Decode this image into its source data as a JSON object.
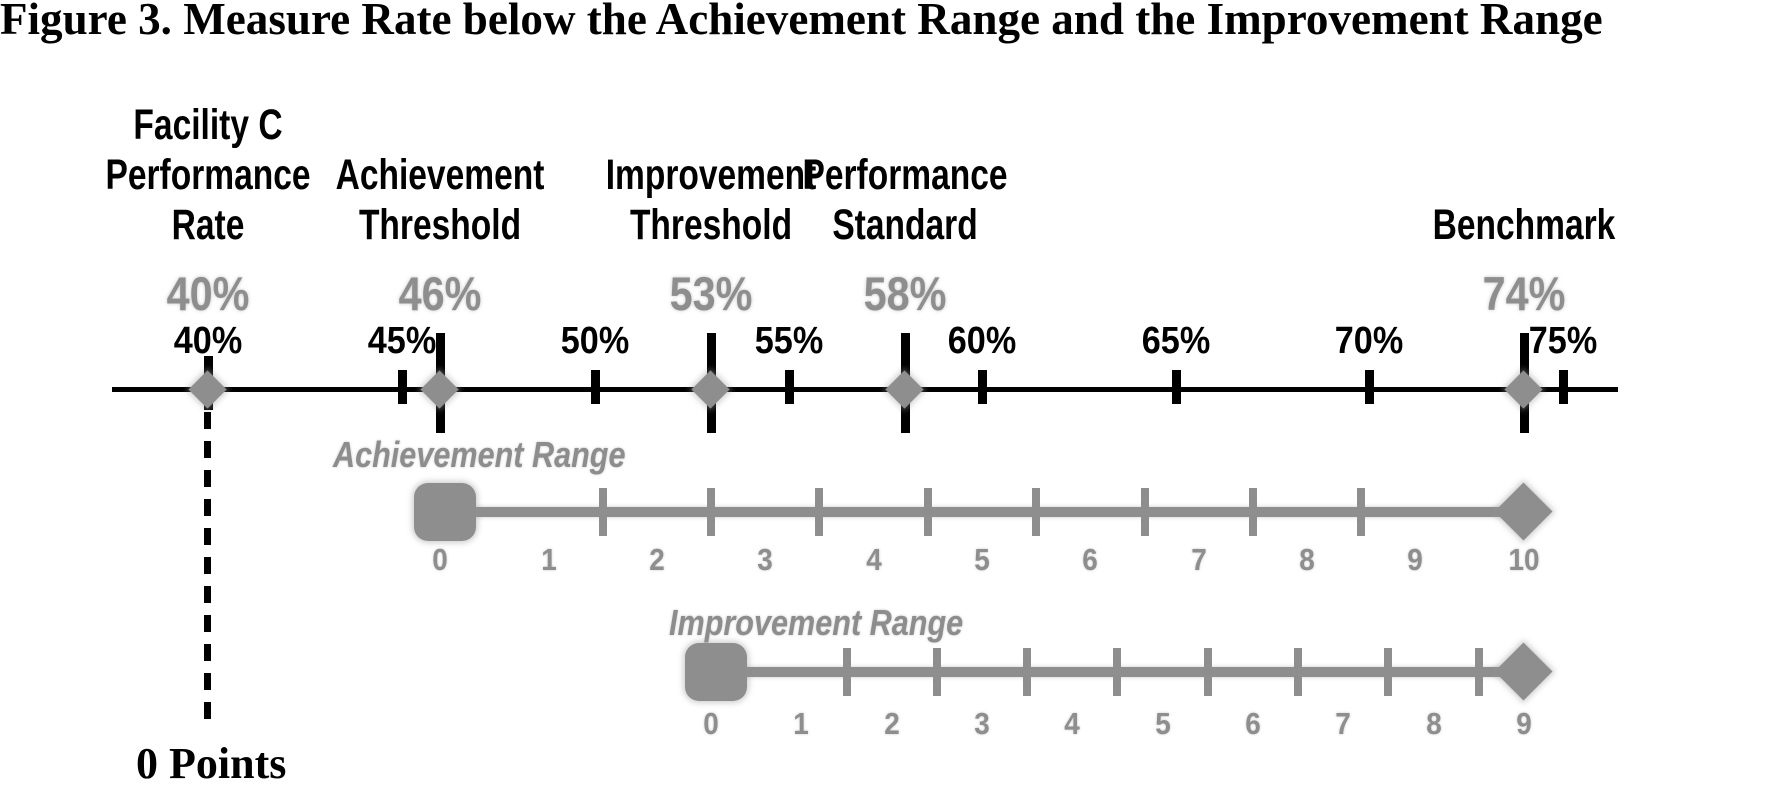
{
  "chart_data": {
    "type": "line",
    "title": "Figure 3. Measure Rate below the Achievement Range and the Improvement Range",
    "axis": {
      "unit": "%",
      "min_percent": 40,
      "max_percent": 75,
      "tick_values": [
        40,
        45,
        50,
        55,
        60,
        65,
        70,
        75
      ],
      "tick_labels": [
        "40%",
        "45%",
        "50%",
        "55%",
        "60%",
        "65%",
        "70%",
        "75%"
      ]
    },
    "markers": [
      {
        "name": "facility-c-performance-rate",
        "label_lines": [
          "Facility C",
          "Performance",
          "Rate"
        ],
        "percent": 40,
        "value_label": "40%"
      },
      {
        "name": "achievement-threshold",
        "label_lines": [
          "Achievement",
          "Threshold"
        ],
        "percent": 46,
        "value_label": "46%"
      },
      {
        "name": "improvement-threshold",
        "label_lines": [
          "Improvement",
          "Threshold"
        ],
        "percent": 53,
        "value_label": "53%"
      },
      {
        "name": "performance-standard",
        "label_lines": [
          "Performance",
          "Standard"
        ],
        "percent": 58,
        "value_label": "58%"
      },
      {
        "name": "benchmark",
        "label_lines": [
          "Benchmark"
        ],
        "percent": 74,
        "value_label": "74%"
      }
    ],
    "ranges": [
      {
        "name": "achievement-range",
        "label": "Achievement Range",
        "start_percent": 46,
        "end_percent": 74,
        "points_min": 0,
        "points_max": 10,
        "point_labels": [
          "0",
          "1",
          "2",
          "3",
          "4",
          "5",
          "6",
          "7",
          "8",
          "9",
          "10"
        ]
      },
      {
        "name": "improvement-range",
        "label": "Improvement Range",
        "start_percent": 53,
        "end_percent": 74,
        "points_min": 0,
        "points_max": 9,
        "point_labels": [
          "0",
          "1",
          "2",
          "3",
          "4",
          "5",
          "6",
          "7",
          "8",
          "9"
        ]
      }
    ],
    "annotation": {
      "text": "0 Points",
      "percent": 40
    },
    "colors": {
      "gray": "#8e8e8e",
      "black": "#000000"
    }
  }
}
